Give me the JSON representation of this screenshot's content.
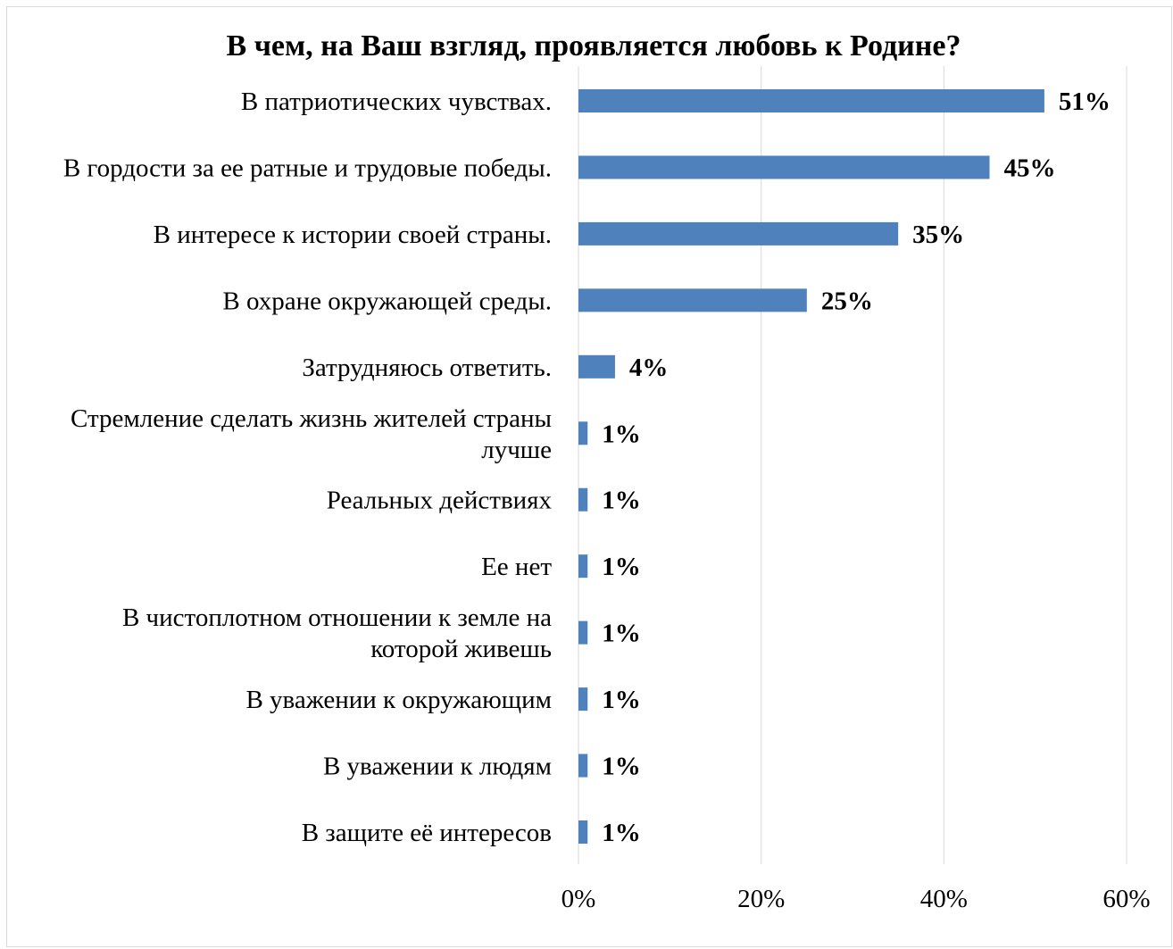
{
  "chart_data": {
    "type": "bar",
    "orientation": "horizontal",
    "title": "В чем, на Ваш взгляд, проявляется любовь к Родине?",
    "categories": [
      "В патриотических чувствах.",
      "В гордости за ее ратные и трудовые победы.",
      "В интересе к истории своей страны.",
      "В охране окружающей среды.",
      "Затрудняюсь ответить.",
      "Стремление сделать жизнь жителей страны лучше",
      "Реальных действиях",
      "Ее нет",
      "В чистоплотном отношении к земле на которой живешь",
      "В уважении к окружающим",
      "В уважении к людям",
      "В защите её интересов"
    ],
    "category_lines": [
      [
        "В патриотических чувствах."
      ],
      [
        "В гордости за ее ратные и трудовые победы."
      ],
      [
        "В интересе к истории своей страны."
      ],
      [
        "В охране окружающей среды."
      ],
      [
        "Затрудняюсь ответить."
      ],
      [
        "Стремление сделать жизнь жителей страны",
        "лучше"
      ],
      [
        "Реальных действиях"
      ],
      [
        "Ее нет"
      ],
      [
        "В чистоплотном отношении к земле на",
        "которой живешь"
      ],
      [
        "В уважении к окружающим"
      ],
      [
        "В уважении к людям"
      ],
      [
        "В защите её интересов"
      ]
    ],
    "values": [
      51,
      45,
      35,
      25,
      4,
      1,
      1,
      1,
      1,
      1,
      1,
      1
    ],
    "data_labels": [
      "51%",
      "45%",
      "35%",
      "25%",
      "4%",
      "1%",
      "1%",
      "1%",
      "1%",
      "1%",
      "1%",
      "1%"
    ],
    "xlim": [
      0,
      60
    ],
    "x_ticks": [
      0,
      20,
      40,
      60
    ],
    "x_tick_labels": [
      "0%",
      "20%",
      "40%",
      "60%"
    ],
    "xlabel": "",
    "ylabel": "",
    "grid": "vertical",
    "legend": "none",
    "colors": {
      "bar": "#4f81bd",
      "grid": "#d9d9d9",
      "frame": "#d9d9d9"
    }
  }
}
